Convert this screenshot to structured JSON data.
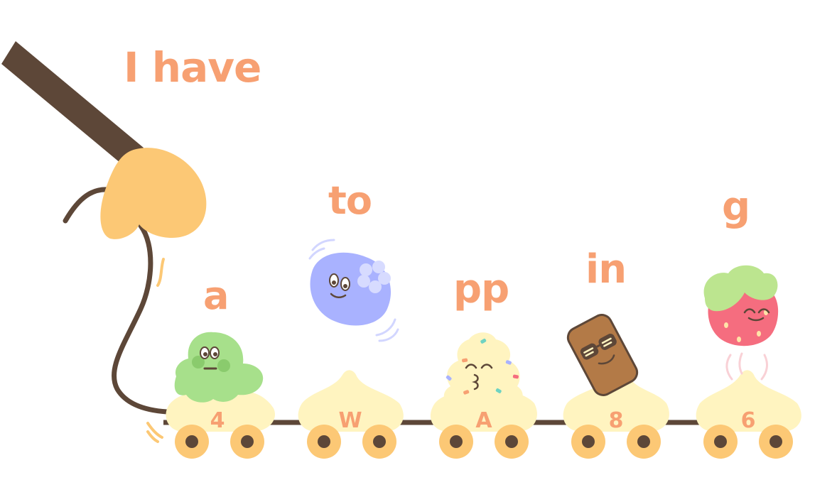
{
  "words": {
    "phrase_start": "I have",
    "word_a": "a",
    "word_to": "to",
    "word_pp": "pp",
    "word_in": "in",
    "word_g": "g"
  },
  "cars": {
    "car1_label": "4",
    "car2_label": "W",
    "car3_label": "A",
    "car4_label": "8",
    "car5_label": "6"
  },
  "colors": {
    "accent_text": "#f7a072",
    "handle_brown": "#5d4738",
    "mitt_yellow": "#fcc875",
    "car_cream": "#fff4c0",
    "wheel_orange": "#fcc875",
    "mint": "#a7e08b",
    "blueberry": "#a9b2ff",
    "chocolate": "#b37a47",
    "strawberry": "#f56d7f",
    "leaf_green": "#bce58f"
  },
  "icons": {
    "handle": "stick-handle-icon",
    "mitt": "oven-mitt-icon",
    "mint_scoop": "mint-ice-cream-icon",
    "blueberry": "blueberry-character-icon",
    "vanilla": "vanilla-soft-serve-icon",
    "chocolate": "chocolate-bar-sunglasses-icon",
    "strawberry": "strawberry-character-icon"
  }
}
